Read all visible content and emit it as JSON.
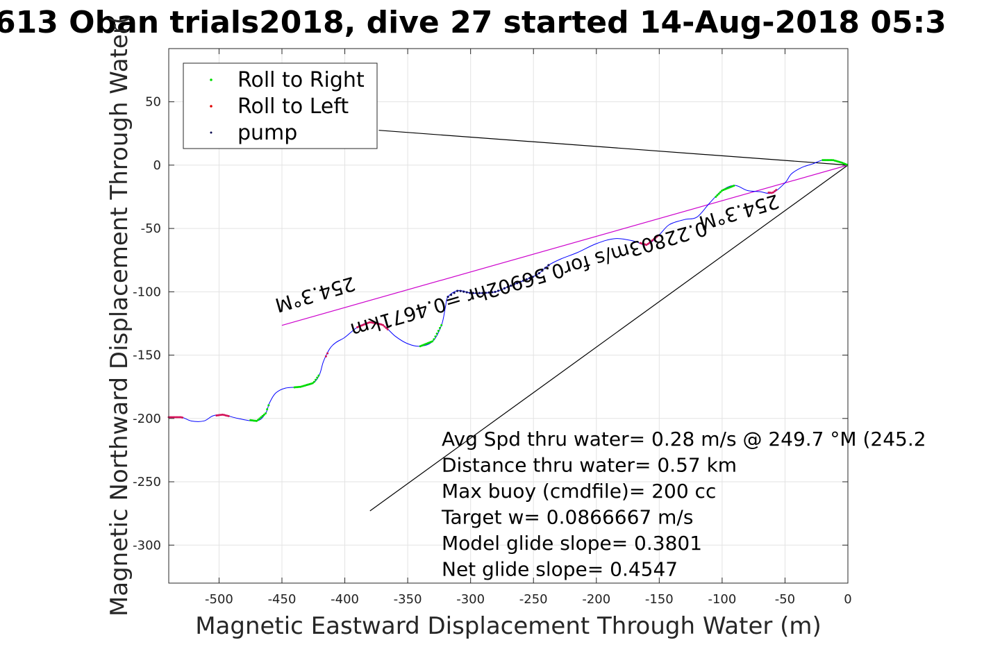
{
  "chart_data": {
    "type": "line",
    "title": "613 Oban trials2018, dive 27 started 14-Aug-2018 05:3",
    "xlabel": "Magnetic Eastward Displacement Through Water (m)",
    "ylabel": "Magnetic Northward Displacement Through Water(",
    "xlim": [
      -540,
      0
    ],
    "ylim": [
      -330,
      92
    ],
    "xticks": [
      -500,
      -450,
      -400,
      -350,
      -300,
      -250,
      -200,
      -150,
      -100,
      -50,
      0
    ],
    "yticks": [
      50,
      0,
      -50,
      -100,
      -150,
      -200,
      -250,
      -300
    ],
    "grid": true,
    "legend": {
      "position": "top-left",
      "entries": [
        {
          "label": "Roll to Right",
          "color": "#00dd00"
        },
        {
          "label": "Roll to Left",
          "color": "#e00000"
        },
        {
          "label": "pump",
          "color": "#0a0a50"
        }
      ]
    },
    "colors": {
      "track": "#0000ff",
      "roll_right": "#00dd00",
      "roll_left": "#d4145a",
      "pump": "#12125a",
      "magenta_line": "#cc00cc",
      "black_line": "#000000"
    },
    "track": [
      [
        -540,
        -199
      ],
      [
        -530,
        -199
      ],
      [
        -522,
        -202
      ],
      [
        -512,
        -202
      ],
      [
        -505,
        -198
      ],
      [
        -497,
        -197
      ],
      [
        -485,
        -200
      ],
      [
        -470,
        -202
      ],
      [
        -463,
        -196
      ],
      [
        -460,
        -188
      ],
      [
        -455,
        -180
      ],
      [
        -447,
        -176
      ],
      [
        -435,
        -175
      ],
      [
        -425,
        -172
      ],
      [
        -420,
        -165
      ],
      [
        -417,
        -155
      ],
      [
        -412,
        -145
      ],
      [
        -407,
        -140
      ],
      [
        -400,
        -136
      ],
      [
        -390,
        -128
      ],
      [
        -380,
        -124
      ],
      [
        -370,
        -126
      ],
      [
        -360,
        -135
      ],
      [
        -350,
        -141
      ],
      [
        -340,
        -143
      ],
      [
        -330,
        -139
      ],
      [
        -323,
        -126
      ],
      [
        -320,
        -112
      ],
      [
        -318,
        -104
      ],
      [
        -310,
        -99
      ],
      [
        -300,
        -101
      ],
      [
        -290,
        -101
      ],
      [
        -280,
        -100
      ],
      [
        -270,
        -96
      ],
      [
        -260,
        -92
      ],
      [
        -250,
        -88
      ],
      [
        -245,
        -85
      ],
      [
        -238,
        -79
      ],
      [
        -228,
        -74
      ],
      [
        -215,
        -69
      ],
      [
        -200,
        -62
      ],
      [
        -185,
        -58
      ],
      [
        -170,
        -60
      ],
      [
        -160,
        -63
      ],
      [
        -150,
        -55
      ],
      [
        -142,
        -47
      ],
      [
        -130,
        -43
      ],
      [
        -120,
        -41
      ],
      [
        -110,
        -30
      ],
      [
        -100,
        -20
      ],
      [
        -90,
        -16
      ],
      [
        -80,
        -20
      ],
      [
        -70,
        -21
      ],
      [
        -60,
        -22
      ],
      [
        -50,
        -14
      ],
      [
        -45,
        -7
      ],
      [
        -37,
        -2
      ],
      [
        -28,
        1
      ],
      [
        -20,
        4
      ],
      [
        -12,
        4
      ],
      [
        -5,
        2
      ],
      [
        0,
        0
      ]
    ],
    "roll_right_segments": [
      [
        -475,
        -460
      ],
      [
        -440,
        -420
      ],
      [
        -340,
        -323
      ],
      [
        -105,
        -90
      ],
      [
        -20,
        0
      ]
    ],
    "roll_left_segments": [
      [
        -540,
        -528
      ],
      [
        -502,
        -492
      ],
      [
        -415,
        -413
      ],
      [
        -390,
        -365
      ],
      [
        -165,
        -150
      ],
      [
        -63,
        -56
      ]
    ],
    "pump_segment": [
      -318,
      -238
    ],
    "reference_lines": {
      "magenta": [
        [
          -450,
          -126.5
        ],
        [
          0,
          0
        ]
      ],
      "black_upper": [
        [
          -373,
          27.5
        ],
        [
          0,
          0
        ]
      ],
      "black_lower": [
        [
          -380,
          -273
        ],
        [
          0,
          0
        ]
      ]
    },
    "heading_labels": [
      {
        "text": "254.3°M",
        "x": -425,
        "y": -97,
        "angle": 163.8
      },
      {
        "text": "254.3°M",
        "x": -88,
        "y": -32,
        "angle": 163.8
      },
      {
        "text": "0.22803m/s for0.56902hr =0.4671km",
        "x": -255,
        "y": -85,
        "angle": 163.8
      }
    ],
    "info_lines": [
      "Avg Spd thru water=  0.28 m/s @ 249.7 °M (245.2",
      "Distance thru water=  0.57 km",
      "Max buoy (cmdfile)= 200 cc",
      "Target w= 0.0866667 m/s",
      "Model glide slope= 0.3801",
      "Net glide slope= 0.4547"
    ]
  }
}
